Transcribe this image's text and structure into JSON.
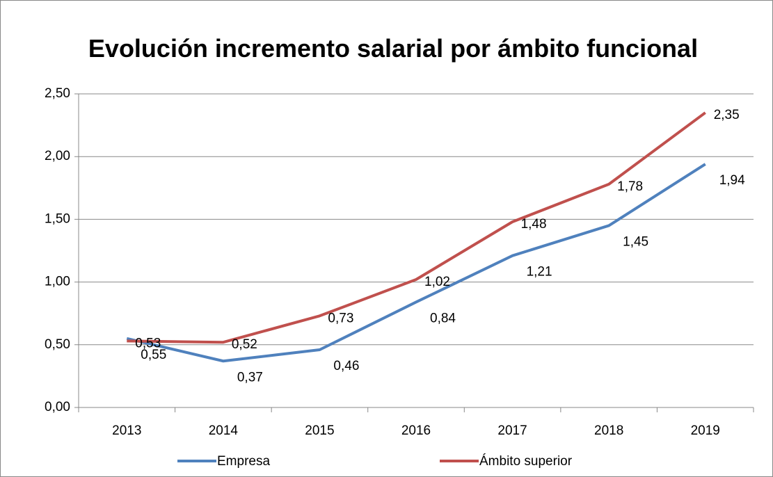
{
  "chart_data": {
    "type": "line",
    "title": "Evolución incremento salarial por ámbito funcional",
    "categories": [
      "2013",
      "2014",
      "2015",
      "2016",
      "2017",
      "2018",
      "2019"
    ],
    "series": [
      {
        "name": "Empresa",
        "color": "#4f81bd",
        "values": [
          0.55,
          0.37,
          0.46,
          0.84,
          1.21,
          1.45,
          1.94
        ],
        "value_labels": [
          "0,55",
          "0,37",
          "0,46",
          "0,84",
          "1,21",
          "1,45",
          "1,94"
        ]
      },
      {
        "name": "Ámbito superior",
        "color": "#c0504d",
        "values": [
          0.53,
          0.52,
          0.73,
          1.02,
          1.48,
          1.78,
          2.35
        ],
        "value_labels": [
          "0,53",
          "0,52",
          "0,73",
          "1,02",
          "1,48",
          "1,78",
          "2,35"
        ]
      }
    ],
    "ylim": [
      0,
      2.5
    ],
    "yticks": [
      {
        "value": 0,
        "label": "0,00"
      },
      {
        "value": 0.5,
        "label": "0,50"
      },
      {
        "value": 1,
        "label": "1,00"
      },
      {
        "value": 1.5,
        "label": "1,50"
      },
      {
        "value": 2,
        "label": "2,00"
      },
      {
        "value": 2.5,
        "label": "2,50"
      }
    ],
    "grid": true,
    "legend": "bottom"
  }
}
